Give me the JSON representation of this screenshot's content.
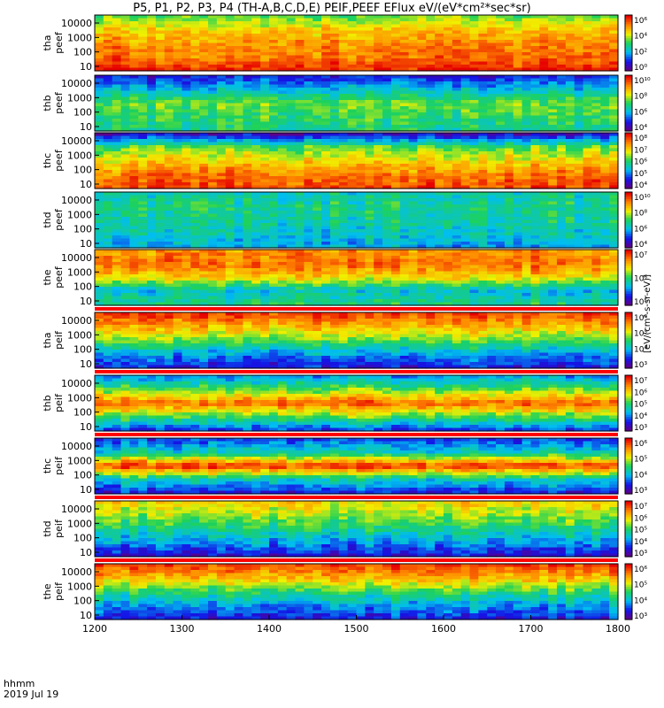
{
  "title": "P5, P1, P2, P3, P4 (TH-A,B,C,D,E) PEIF,PEEF EFlux eV/(eV*cm²*sec*sr)",
  "footer": {
    "line1": "hhmm",
    "line2": "2019 Jul 19"
  },
  "colorbar_unit_label": "[eV/(cm²-s-sr-eV)]",
  "colors": {
    "frame": "#000000",
    "gap_stripe": "#ff0000",
    "background": "#ffffff"
  },
  "chart_data": {
    "type": "heatmap",
    "colormap": "rainbow (purple-blue-cyan-green-yellow-red)",
    "x": {
      "label": "hhmm",
      "ticks": [
        1200,
        1300,
        1400,
        1500,
        1600,
        1700,
        1800
      ],
      "range": [
        1200,
        1800
      ]
    },
    "y_ticks": [
      "10000",
      "1000",
      "100",
      "10"
    ],
    "y_scale": "log",
    "panels": [
      {
        "label": "tha\npeef",
        "cb_ticks": [
          "10⁶",
          "10⁴",
          "10²",
          "10⁰"
        ],
        "profile": [
          0.55,
          0.72,
          0.8,
          0.85,
          0.95
        ],
        "top_stripe": false
      },
      {
        "label": "thb\npeef",
        "cb_ticks": [
          "10¹⁰",
          "10⁸",
          "10⁶",
          "10⁴"
        ],
        "profile": [
          0.15,
          0.35,
          0.55,
          0.5,
          0.45
        ],
        "top_stripe": false
      },
      {
        "label": "thc\npeef",
        "cb_ticks": [
          "10⁸",
          "10⁷",
          "10⁶",
          "10⁵",
          "10⁴"
        ],
        "profile": [
          0.1,
          0.55,
          0.7,
          0.85,
          0.92
        ],
        "top_stripe": false
      },
      {
        "label": "thd\npeef",
        "cb_ticks": [
          "10¹⁰",
          "10⁸",
          "10⁶",
          "10⁴"
        ],
        "profile": [
          0.4,
          0.45,
          0.42,
          0.38,
          0.3
        ],
        "top_stripe": false
      },
      {
        "label": "the\npeef",
        "cb_ticks": [
          "10⁷",
          "10⁶",
          "10⁵"
        ],
        "profile": [
          0.8,
          0.85,
          0.7,
          0.35,
          0.45
        ],
        "top_stripe": false
      },
      {
        "label": "tha\npeif",
        "cb_ticks": [
          "10⁶",
          "10⁵",
          "10⁴",
          "10³"
        ],
        "profile": [
          0.92,
          0.75,
          0.55,
          0.3,
          0.15
        ],
        "top_stripe": true
      },
      {
        "label": "thb\npeif",
        "cb_ticks": [
          "10⁷",
          "10⁶",
          "10⁵",
          "10⁴",
          "10³"
        ],
        "profile": [
          0.3,
          0.55,
          0.88,
          0.55,
          0.2
        ],
        "top_stripe": true
      },
      {
        "label": "thc\npeif",
        "cb_ticks": [
          "10⁶",
          "10⁵",
          "10⁴",
          "10³"
        ],
        "profile": [
          0.2,
          0.4,
          0.95,
          0.4,
          0.15
        ],
        "top_stripe": true
      },
      {
        "label": "thd\npeif",
        "cb_ticks": [
          "10⁷",
          "10⁶",
          "10⁵",
          "10⁴",
          "10³"
        ],
        "profile": [
          0.7,
          0.6,
          0.45,
          0.3,
          0.12
        ],
        "top_stripe": true
      },
      {
        "label": "the\npeif",
        "cb_ticks": [
          "10⁶",
          "10⁵",
          "10⁴",
          "10³"
        ],
        "profile": [
          0.92,
          0.75,
          0.5,
          0.3,
          0.15
        ],
        "top_stripe": true
      }
    ]
  }
}
